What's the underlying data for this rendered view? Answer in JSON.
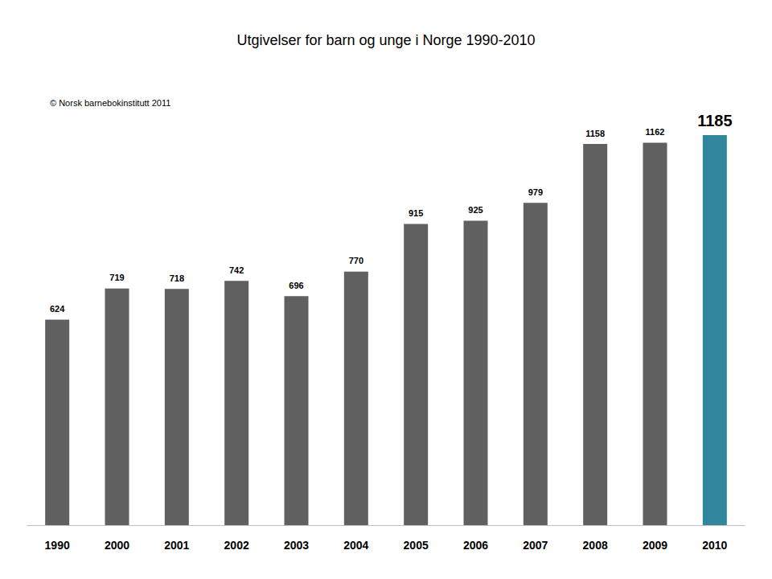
{
  "chart_data": {
    "type": "bar",
    "title": "Utgivelser for barn og unge i Norge 1990-2010",
    "annotations": [
      "© Norsk barnebokinstitutt 2011"
    ],
    "categories": [
      "1990",
      "2000",
      "2001",
      "2002",
      "2003",
      "2004",
      "2005",
      "2006",
      "2007",
      "2008",
      "2009",
      "2010"
    ],
    "values": [
      624,
      719,
      718,
      742,
      696,
      770,
      915,
      925,
      979,
      1158,
      1162,
      1185
    ],
    "colors": [
      "#606060",
      "#606060",
      "#606060",
      "#606060",
      "#606060",
      "#606060",
      "#606060",
      "#606060",
      "#606060",
      "#606060",
      "#606060",
      "#31859c"
    ],
    "ylim": [
      0,
      1400
    ],
    "data_labels": true,
    "tick_labels": "x",
    "grid": false
  }
}
